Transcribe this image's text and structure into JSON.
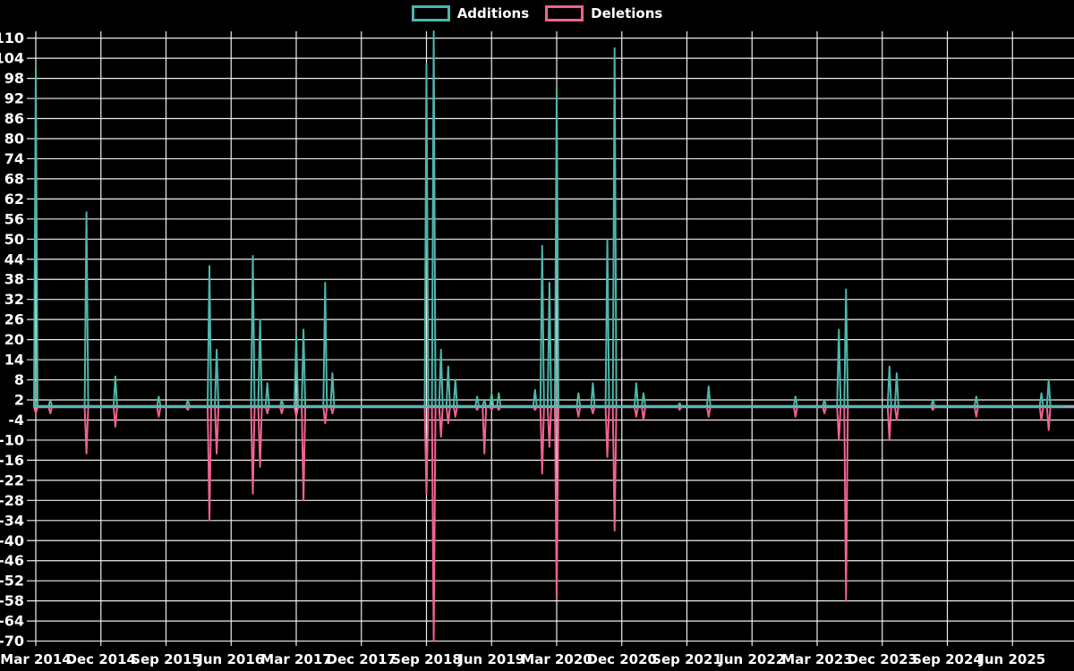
{
  "colors": {
    "background": "#000000",
    "grid": "#eeeeee",
    "tick_text": "#ffffff",
    "zero_line": "#8fabb8",
    "additions": "#4db6ac",
    "deletions": "#f06292"
  },
  "legend": {
    "items": [
      {
        "label": "Additions",
        "color": "#4db6ac"
      },
      {
        "label": "Deletions",
        "color": "#f06292"
      }
    ]
  },
  "chart_data": {
    "type": "line",
    "title": "",
    "xlabel": "",
    "ylabel": "",
    "legend_position": "top-center",
    "grid": true,
    "y_axis": {
      "min": -70,
      "max": 112,
      "ticks": [
        110,
        104,
        98,
        92,
        86,
        80,
        74,
        68,
        62,
        56,
        50,
        44,
        38,
        32,
        26,
        20,
        14,
        8,
        2,
        -4,
        -10,
        -16,
        -22,
        -28,
        -34,
        -40,
        -46,
        -52,
        -58,
        -64,
        -70
      ]
    },
    "x_axis": {
      "start_month": "2014-03",
      "months_per_tick": 9,
      "tick_labels": [
        "Mar 2014",
        "Dec 2014",
        "Sep 2015",
        "Jun 2016",
        "Mar 2017",
        "Dec 2017",
        "Sep 2018",
        "Jun 2019",
        "Mar 2020",
        "Dec 2020",
        "Sep 2021",
        "Jun 2022",
        "Mar 2023",
        "Dec 2023",
        "Sep 2024",
        "Jun 2025"
      ]
    },
    "series": [
      {
        "name": "Additions",
        "color": "#4db6ac",
        "value_key": "additions"
      },
      {
        "name": "Deletions",
        "color": "#f06292",
        "value_key": "deletions"
      }
    ],
    "baseline_value": 0,
    "events": [
      {
        "month": "2014-03",
        "additions": 101,
        "deletions": -2
      },
      {
        "month": "2014-05",
        "additions": 2,
        "deletions": -2
      },
      {
        "month": "2014-10",
        "additions": 58,
        "deletions": -14
      },
      {
        "month": "2015-02",
        "additions": 9,
        "deletions": -6
      },
      {
        "month": "2015-08",
        "additions": 3,
        "deletions": -3
      },
      {
        "month": "2015-12",
        "additions": 2,
        "deletions": -1
      },
      {
        "month": "2016-03",
        "additions": 42,
        "deletions": -34
      },
      {
        "month": "2016-04",
        "additions": 17,
        "deletions": -14
      },
      {
        "month": "2016-09",
        "additions": 45,
        "deletions": -26
      },
      {
        "month": "2016-10",
        "additions": 26,
        "deletions": -18
      },
      {
        "month": "2016-11",
        "additions": 7,
        "deletions": -2
      },
      {
        "month": "2017-01",
        "additions": 2,
        "deletions": -2
      },
      {
        "month": "2017-03",
        "additions": 21,
        "deletions": -3
      },
      {
        "month": "2017-04",
        "additions": 23,
        "deletions": -28
      },
      {
        "month": "2017-07",
        "additions": 37,
        "deletions": -5
      },
      {
        "month": "2017-08",
        "additions": 10,
        "deletions": -2
      },
      {
        "month": "2018-09",
        "additions": 102,
        "deletions": -26
      },
      {
        "month": "2018-10",
        "additions": 113,
        "deletions": -70
      },
      {
        "month": "2018-11",
        "additions": 17,
        "deletions": -9
      },
      {
        "month": "2018-12",
        "additions": 12,
        "deletions": -5
      },
      {
        "month": "2019-01",
        "additions": 8,
        "deletions": -3
      },
      {
        "month": "2019-04",
        "additions": 3,
        "deletions": -1
      },
      {
        "month": "2019-05",
        "additions": 2,
        "deletions": -14
      },
      {
        "month": "2019-06",
        "additions": 4,
        "deletions": -1
      },
      {
        "month": "2019-07",
        "additions": 4,
        "deletions": -1
      },
      {
        "month": "2019-12",
        "additions": 5,
        "deletions": -1
      },
      {
        "month": "2020-01",
        "additions": 48,
        "deletions": -20
      },
      {
        "month": "2020-02",
        "additions": 37,
        "deletions": -12
      },
      {
        "month": "2020-03",
        "additions": 95,
        "deletions": -57
      },
      {
        "month": "2020-06",
        "additions": 4,
        "deletions": -3
      },
      {
        "month": "2020-08",
        "additions": 7,
        "deletions": -2
      },
      {
        "month": "2020-10",
        "additions": 50,
        "deletions": -15
      },
      {
        "month": "2020-11",
        "additions": 107,
        "deletions": -37
      },
      {
        "month": "2021-02",
        "additions": 7,
        "deletions": -3
      },
      {
        "month": "2021-03",
        "additions": 4,
        "deletions": -4
      },
      {
        "month": "2021-08",
        "additions": 1,
        "deletions": -1
      },
      {
        "month": "2021-12",
        "additions": 6,
        "deletions": -3
      },
      {
        "month": "2022-12",
        "additions": 3,
        "deletions": -3
      },
      {
        "month": "2023-04",
        "additions": 2,
        "deletions": -2
      },
      {
        "month": "2023-06",
        "additions": 23,
        "deletions": -10
      },
      {
        "month": "2023-07",
        "additions": 35,
        "deletions": -58
      },
      {
        "month": "2024-01",
        "additions": 12,
        "deletions": -10
      },
      {
        "month": "2024-02",
        "additions": 10,
        "deletions": -4
      },
      {
        "month": "2024-07",
        "additions": 2,
        "deletions": -1
      },
      {
        "month": "2025-01",
        "additions": 3,
        "deletions": -3
      },
      {
        "month": "2025-10",
        "additions": 4,
        "deletions": -4
      },
      {
        "month": "2025-11",
        "additions": 8,
        "deletions": -7
      }
    ]
  }
}
